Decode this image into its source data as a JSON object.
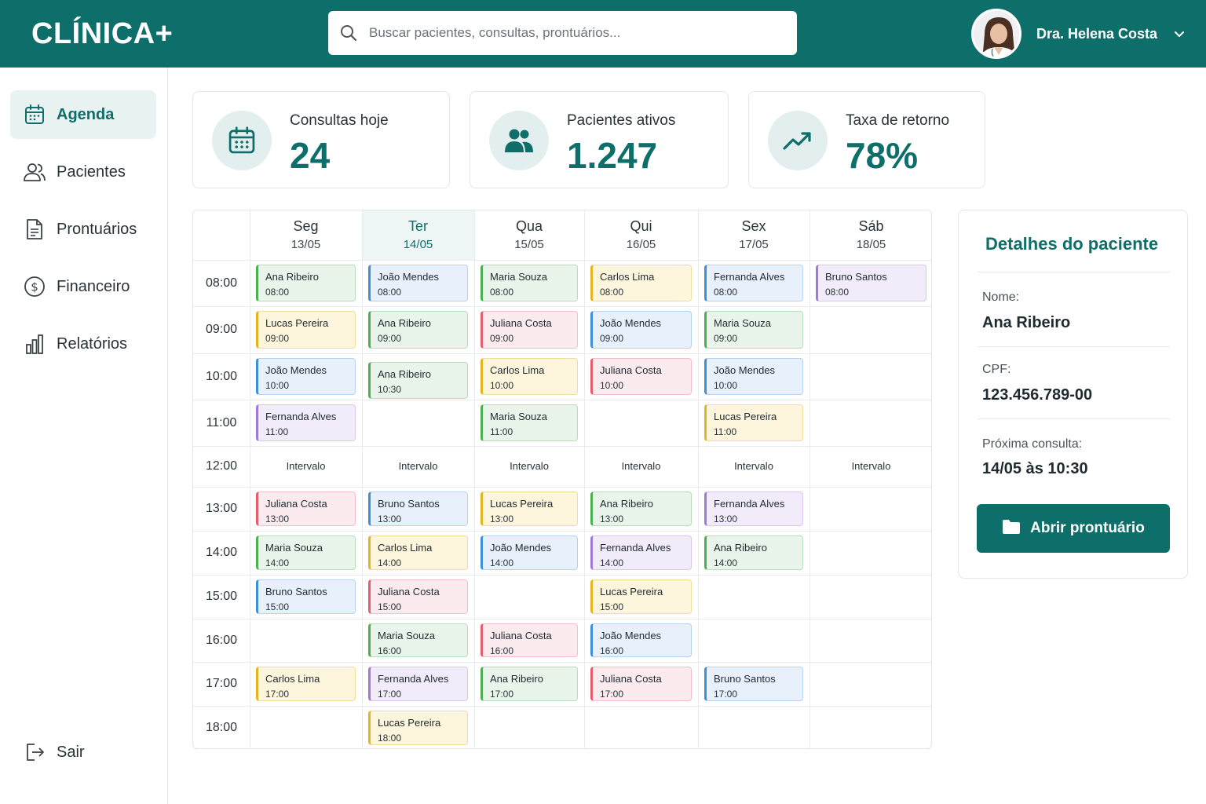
{
  "app": {
    "logo": "CLÍNICA+"
  },
  "search": {
    "placeholder": "Buscar pacientes, consultas, prontuários..."
  },
  "user": {
    "name": "Dra. Helena Costa"
  },
  "sidebar": {
    "items": [
      {
        "label": "Agenda",
        "icon": "calendar-icon",
        "active": true
      },
      {
        "label": "Pacientes",
        "icon": "users-icon"
      },
      {
        "label": "Prontuários",
        "icon": "document-icon"
      },
      {
        "label": "Financeiro",
        "icon": "dollar-icon"
      },
      {
        "label": "Relatórios",
        "icon": "bar-chart-icon"
      }
    ],
    "logout": "Sair"
  },
  "stats": [
    {
      "label": "Consultas hoje",
      "value": "24",
      "icon": "calendar-icon"
    },
    {
      "label": "Pacientes ativos",
      "value": "1.247",
      "icon": "users-icon"
    },
    {
      "label": "Taxa de retorno",
      "value": "78%",
      "icon": "trend-up-icon"
    }
  ],
  "calendar": {
    "days": [
      {
        "name": "Seg",
        "date": "13/05"
      },
      {
        "name": "Ter",
        "date": "14/05",
        "today": true
      },
      {
        "name": "Qua",
        "date": "15/05"
      },
      {
        "name": "Qui",
        "date": "16/05"
      },
      {
        "name": "Sex",
        "date": "17/05"
      },
      {
        "name": "Sáb",
        "date": "18/05"
      }
    ],
    "times": [
      "08:00",
      "09:00",
      "10:00",
      "11:00",
      "12:00",
      "13:00",
      "14:00",
      "15:00",
      "16:00",
      "17:00",
      "18:00"
    ],
    "break_label": "Intervalo",
    "break_row": 4,
    "break_days": 6,
    "colors": {
      "green": "#4caf50",
      "blue": "#3d8fd8",
      "yellow": "#e4b422",
      "pink": "#e35d6d",
      "purple": "#9c7ad6"
    },
    "appointments": [
      {
        "day": 0,
        "row": 0,
        "name": "Ana Ribeiro",
        "time": "08:00",
        "color": "green"
      },
      {
        "day": 1,
        "row": 0,
        "name": "João Mendes",
        "time": "08:00",
        "color": "blue"
      },
      {
        "day": 2,
        "row": 0,
        "name": "Maria Souza",
        "time": "08:00",
        "color": "green"
      },
      {
        "day": 3,
        "row": 0,
        "name": "Carlos Lima",
        "time": "08:00",
        "color": "yellow"
      },
      {
        "day": 4,
        "row": 0,
        "name": "Fernanda Alves",
        "time": "08:00",
        "color": "blue"
      },
      {
        "day": 5,
        "row": 0,
        "name": "Bruno Santos",
        "time": "08:00",
        "color": "purple"
      },
      {
        "day": 0,
        "row": 1,
        "name": "Lucas Pereira",
        "time": "09:00",
        "color": "yellow"
      },
      {
        "day": 1,
        "row": 1,
        "name": "Ana Ribeiro",
        "time": "09:00",
        "color": "green"
      },
      {
        "day": 2,
        "row": 1,
        "name": "Juliana Costa",
        "time": "09:00",
        "color": "pink"
      },
      {
        "day": 3,
        "row": 1,
        "name": "João Mendes",
        "time": "09:00",
        "color": "blue"
      },
      {
        "day": 4,
        "row": 1,
        "name": "Maria Souza",
        "time": "09:00",
        "color": "green"
      },
      {
        "day": 0,
        "row": 2,
        "name": "João Mendes",
        "time": "10:00",
        "color": "blue"
      },
      {
        "day": 1,
        "row": 2,
        "name": "Ana Ribeiro",
        "time": "10:30",
        "color": "green"
      },
      {
        "day": 2,
        "row": 2,
        "name": "Carlos Lima",
        "time": "10:00",
        "color": "yellow"
      },
      {
        "day": 3,
        "row": 2,
        "name": "Juliana Costa",
        "time": "10:00",
        "color": "pink"
      },
      {
        "day": 4,
        "row": 2,
        "name": "João Mendes",
        "time": "10:00",
        "color": "blue"
      },
      {
        "day": 0,
        "row": 3,
        "name": "Fernanda Alves",
        "time": "11:00",
        "color": "purple"
      },
      {
        "day": 2,
        "row": 3,
        "name": "Maria Souza",
        "time": "11:00",
        "color": "green"
      },
      {
        "day": 4,
        "row": 3,
        "name": "Lucas Pereira",
        "time": "11:00",
        "color": "yellow"
      },
      {
        "day": 0,
        "row": 5,
        "name": "Juliana Costa",
        "time": "13:00",
        "color": "pink"
      },
      {
        "day": 1,
        "row": 5,
        "name": "Bruno Santos",
        "time": "13:00",
        "color": "blue"
      },
      {
        "day": 2,
        "row": 5,
        "name": "Lucas Pereira",
        "time": "13:00",
        "color": "yellow"
      },
      {
        "day": 3,
        "row": 5,
        "name": "Ana Ribeiro",
        "time": "13:00",
        "color": "green"
      },
      {
        "day": 4,
        "row": 5,
        "name": "Fernanda Alves",
        "time": "13:00",
        "color": "purple"
      },
      {
        "day": 0,
        "row": 6,
        "name": "Maria Souza",
        "time": "14:00",
        "color": "green"
      },
      {
        "day": 1,
        "row": 6,
        "name": "Carlos Lima",
        "time": "14:00",
        "color": "yellow"
      },
      {
        "day": 2,
        "row": 6,
        "name": "João Mendes",
        "time": "14:00",
        "color": "blue"
      },
      {
        "day": 3,
        "row": 6,
        "name": "Fernanda Alves",
        "time": "14:00",
        "color": "purple"
      },
      {
        "day": 4,
        "row": 6,
        "name": "Ana Ribeiro",
        "time": "14:00",
        "color": "green"
      },
      {
        "day": 0,
        "row": 7,
        "name": "Bruno Santos",
        "time": "15:00",
        "color": "blue"
      },
      {
        "day": 1,
        "row": 7,
        "name": "Juliana Costa",
        "time": "15:00",
        "color": "pink"
      },
      {
        "day": 3,
        "row": 7,
        "name": "Lucas Pereira",
        "time": "15:00",
        "color": "yellow"
      },
      {
        "day": 1,
        "row": 8,
        "name": "Maria Souza",
        "time": "16:00",
        "color": "green"
      },
      {
        "day": 2,
        "row": 8,
        "name": "Juliana Costa",
        "time": "16:00",
        "color": "pink"
      },
      {
        "day": 3,
        "row": 8,
        "name": "João Mendes",
        "time": "16:00",
        "color": "blue"
      },
      {
        "day": 0,
        "row": 9,
        "name": "Carlos Lima",
        "time": "17:00",
        "color": "yellow"
      },
      {
        "day": 1,
        "row": 9,
        "name": "Fernanda Alves",
        "time": "17:00",
        "color": "purple"
      },
      {
        "day": 2,
        "row": 9,
        "name": "Ana Ribeiro",
        "time": "17:00",
        "color": "green"
      },
      {
        "day": 3,
        "row": 9,
        "name": "Juliana Costa",
        "time": "17:00",
        "color": "pink"
      },
      {
        "day": 4,
        "row": 9,
        "name": "Bruno Santos",
        "time": "17:00",
        "color": "blue"
      },
      {
        "day": 1,
        "row": 10,
        "name": "Lucas Pereira",
        "time": "18:00",
        "color": "yellow"
      }
    ]
  },
  "details": {
    "title": "Detalhes do paciente",
    "name_label": "Nome:",
    "name_value": "Ana Ribeiro",
    "cpf_label": "CPF:",
    "cpf_value": "123.456.789-00",
    "next_label": "Próxima consulta:",
    "next_value": "14/05 às 10:30",
    "button_label": "Abrir prontuário"
  }
}
